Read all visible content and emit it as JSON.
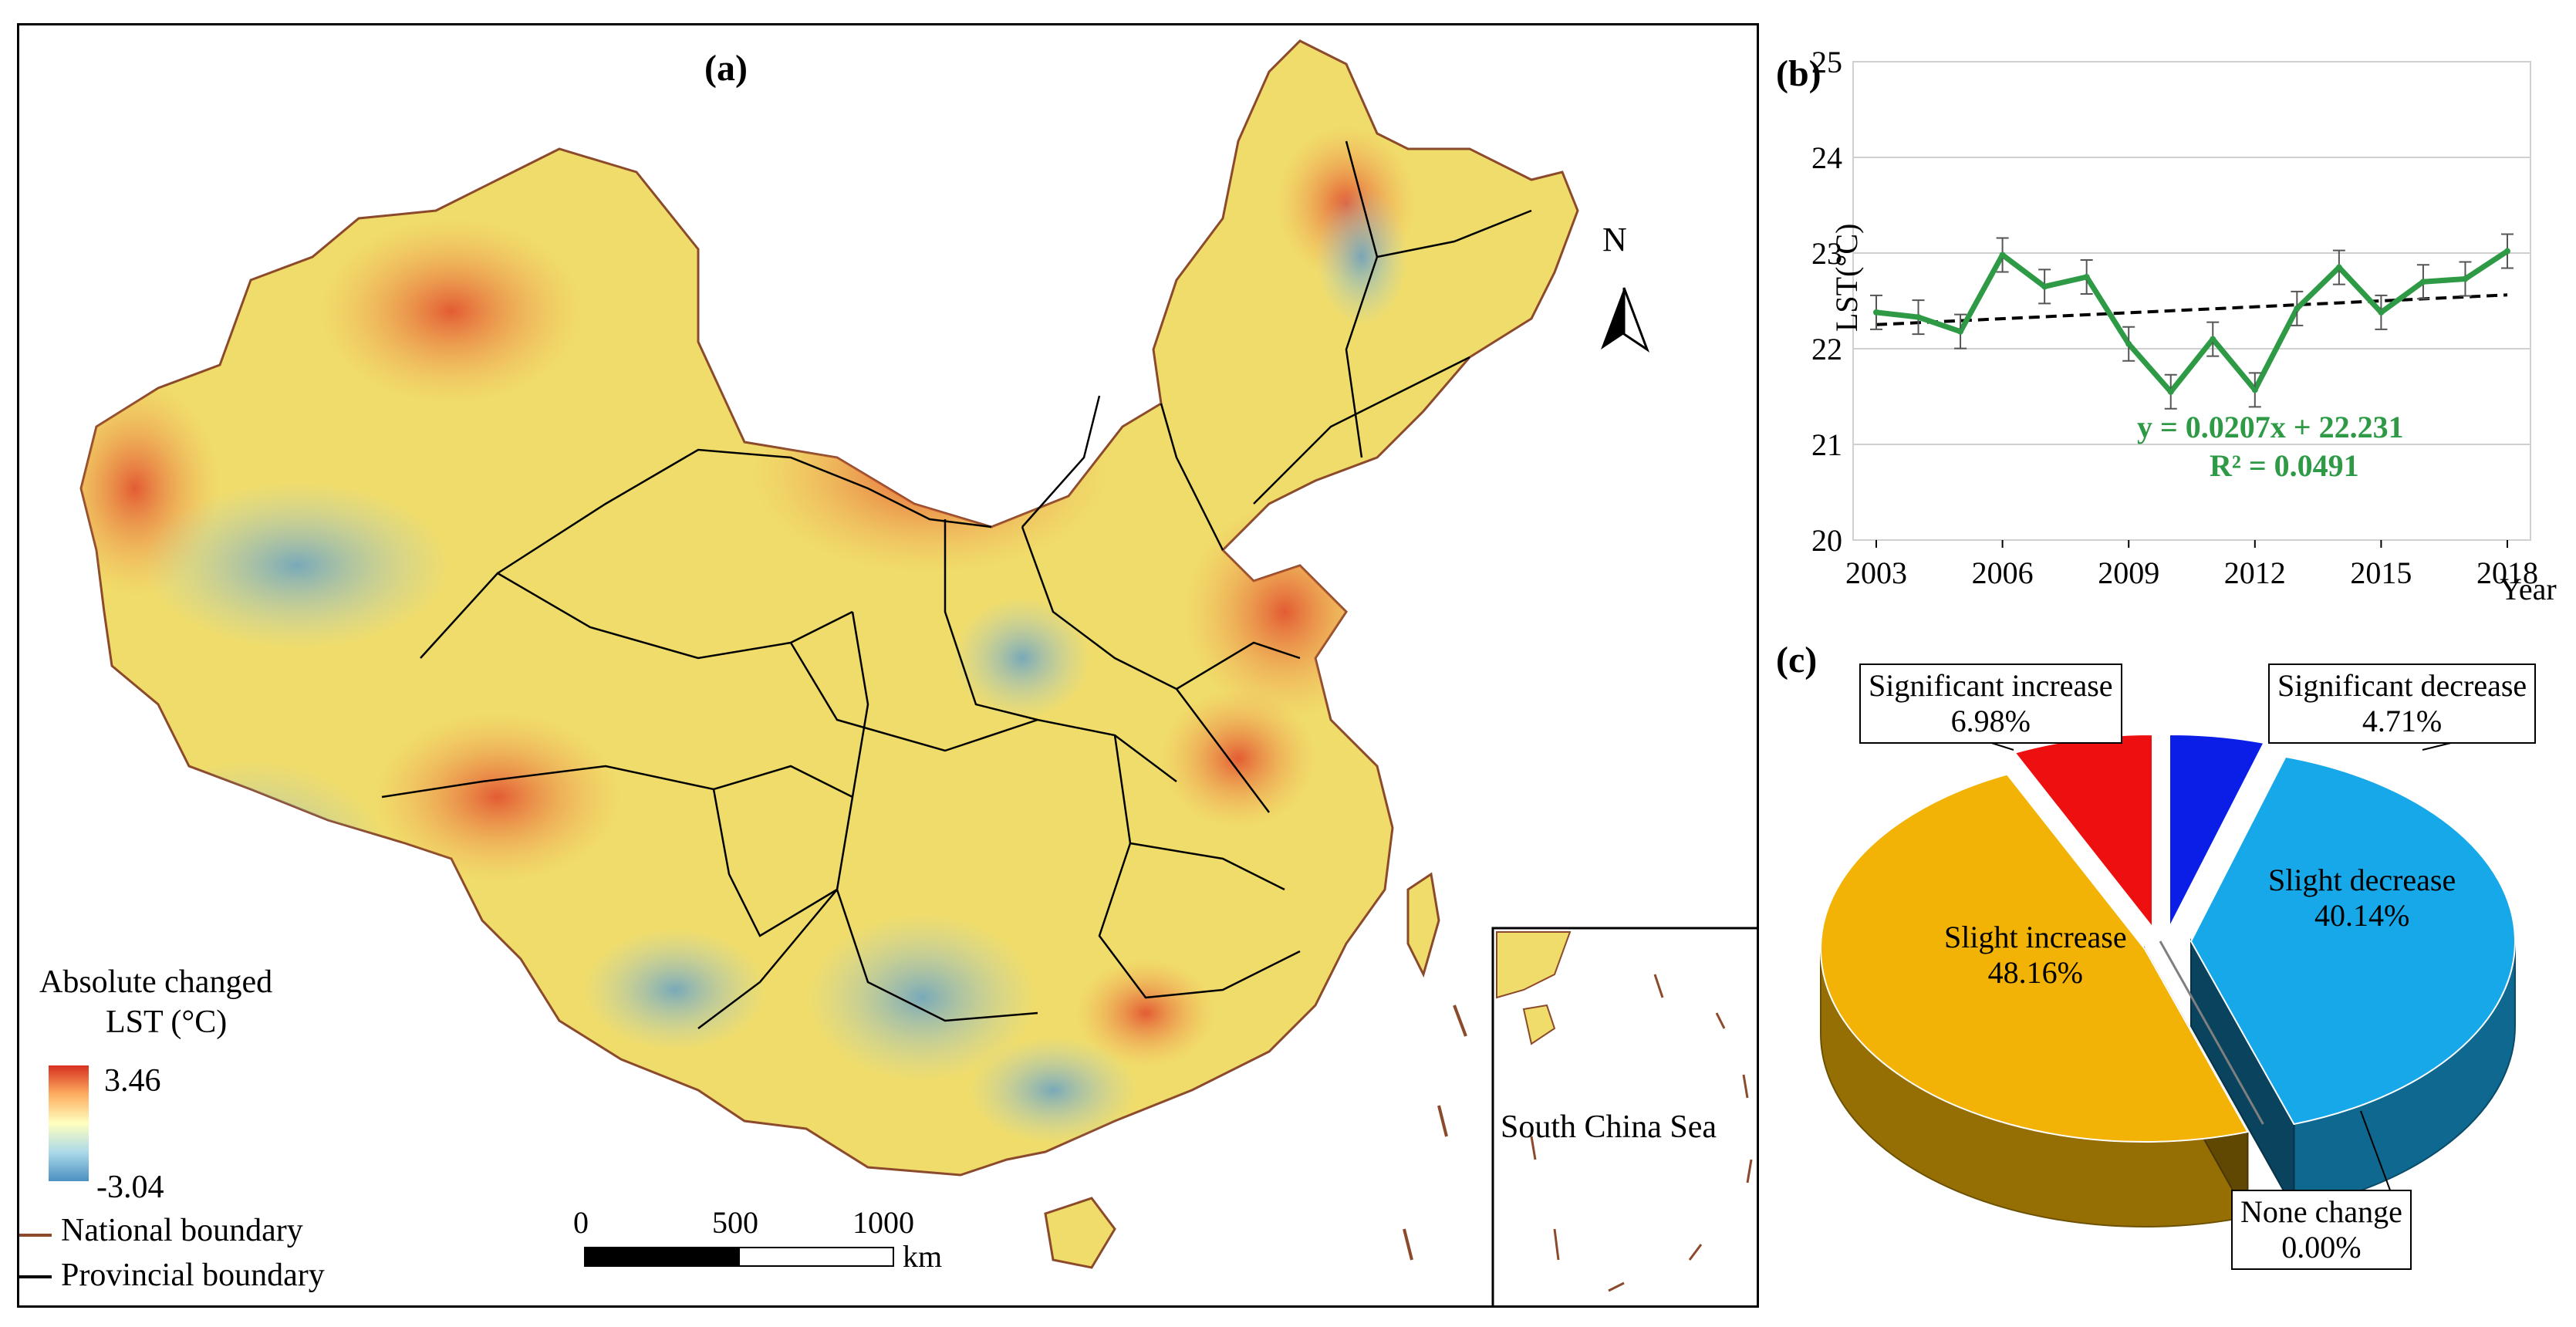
{
  "map_panel": {
    "label": "(a)",
    "north": "N",
    "legend": {
      "title_line1": "Absolute changed",
      "title_line2": "LST (°C)",
      "max": "3.46",
      "min": "-3.04",
      "national_boundary": "National boundary",
      "provincial_boundary": "Provincial boundary",
      "national_color": "#8b4a2b",
      "provincial_color": "#000000",
      "ramp": [
        "#d7301f",
        "#fdae61",
        "#ffffbf",
        "#abd9e9",
        "#4a90c2"
      ]
    },
    "scale": {
      "ticks": [
        "0",
        "500",
        "1000"
      ],
      "unit": "km"
    },
    "inset_label": "South China Sea"
  },
  "chart_data": [
    {
      "type": "line",
      "panel": "(b)",
      "ylabel": "LST(°C)",
      "xlabel": "Year",
      "ylim": [
        20,
        25
      ],
      "yticks": [
        "20",
        "21",
        "22",
        "23",
        "24",
        "25"
      ],
      "xticks": [
        "2003",
        "2006",
        "2009",
        "2012",
        "2015",
        "2018"
      ],
      "grid": true,
      "series": [
        {
          "color": "#2e9a45",
          "x": [
            2003,
            2004,
            2005,
            2006,
            2007,
            2008,
            2009,
            2010,
            2011,
            2012,
            2013,
            2014,
            2015,
            2016,
            2017,
            2018
          ],
          "values": [
            22.38,
            22.33,
            22.18,
            22.98,
            22.65,
            22.75,
            22.05,
            21.55,
            22.1,
            21.57,
            22.42,
            22.85,
            22.38,
            22.7,
            22.73,
            23.02
          ]
        }
      ],
      "trendline": {
        "slope": 0.0207,
        "intercept": 22.231,
        "color": "#000000"
      },
      "equation": "y = 0.0207x + 22.231",
      "r2": "R² = 0.0491",
      "equation_color": "#2e9a45"
    },
    {
      "type": "pie",
      "panel": "(c)",
      "slices": [
        {
          "label": "Significant increase",
          "value": 6.98,
          "display": "6.98%",
          "color": "#ee1010"
        },
        {
          "label": "Significant decrease",
          "value": 4.71,
          "display": "4.71%",
          "color": "#0a1ee8"
        },
        {
          "label": "Slight decrease",
          "value": 40.14,
          "display": "40.14%",
          "color": "#16a8e8"
        },
        {
          "label": "None change",
          "value": 0.0,
          "display": "0.00%",
          "color": "#7f7f7f"
        },
        {
          "label": "Slight increase",
          "value": 48.16,
          "display": "48.16%",
          "color": "#f2b306"
        }
      ]
    }
  ]
}
